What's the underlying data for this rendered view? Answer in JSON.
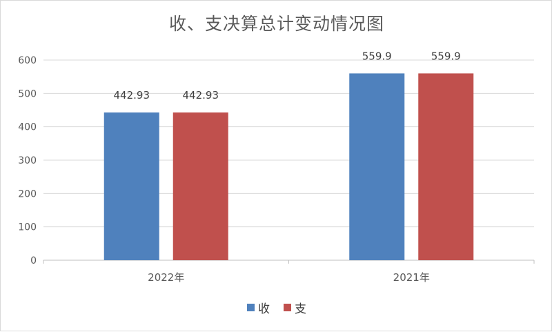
{
  "chart_data": {
    "type": "bar",
    "title": "收、支决算总计变动情况图",
    "categories": [
      "2022年",
      "2021年"
    ],
    "series": [
      {
        "name": "收",
        "values": [
          442.93,
          559.9
        ],
        "labels": [
          "442.93",
          "559.9"
        ],
        "color": "#4f81bd"
      },
      {
        "name": "支",
        "values": [
          442.93,
          559.9
        ],
        "labels": [
          "442.93",
          "559.9"
        ],
        "color": "#c0504d"
      }
    ],
    "ylim": [
      0,
      600
    ],
    "yticks": [
      0,
      100,
      200,
      300,
      400,
      500,
      600
    ],
    "grid": true,
    "legend_position": "bottom",
    "xlabel": "",
    "ylabel": ""
  }
}
